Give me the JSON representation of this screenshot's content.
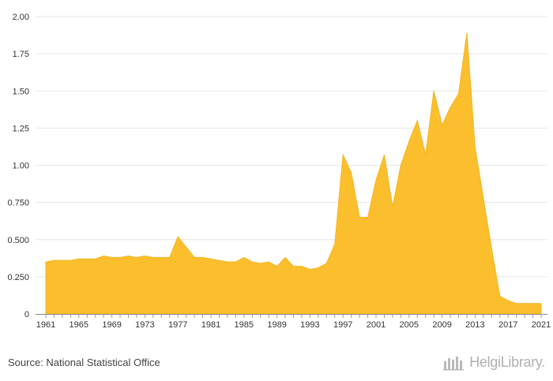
{
  "chart_data": {
    "type": "area",
    "title": "",
    "xlabel": "",
    "ylabel": "",
    "ylim": [
      0,
      2.0
    ],
    "grid": true,
    "legend": "none",
    "fill_color": "#FBBF2E",
    "line_color": "#F5B41E",
    "y_ticks": [
      "0",
      "0.250",
      "0.500",
      "0.750",
      "1.00",
      "1.25",
      "1.50",
      "1.75",
      "2.00"
    ],
    "y_tick_values": [
      0,
      0.25,
      0.5,
      0.75,
      1.0,
      1.25,
      1.5,
      1.75,
      2.0
    ],
    "x_ticks": [
      "1961",
      "1965",
      "1969",
      "1973",
      "1977",
      "1981",
      "1985",
      "1989",
      "1993",
      "1997",
      "2001",
      "2005",
      "2009",
      "2013",
      "2017",
      "2021"
    ],
    "x": [
      1961,
      1962,
      1963,
      1964,
      1965,
      1966,
      1967,
      1968,
      1969,
      1970,
      1971,
      1972,
      1973,
      1974,
      1975,
      1976,
      1977,
      1978,
      1979,
      1980,
      1981,
      1982,
      1983,
      1984,
      1985,
      1986,
      1987,
      1988,
      1989,
      1990,
      1991,
      1992,
      1993,
      1994,
      1995,
      1996,
      1997,
      1998,
      1999,
      2000,
      2001,
      2002,
      2003,
      2004,
      2005,
      2006,
      2007,
      2008,
      2009,
      2010,
      2011,
      2012,
      2013,
      2014,
      2015,
      2016,
      2017,
      2018,
      2019,
      2020,
      2021
    ],
    "values": [
      0.35,
      0.36,
      0.36,
      0.36,
      0.37,
      0.37,
      0.37,
      0.39,
      0.38,
      0.38,
      0.39,
      0.38,
      0.39,
      0.38,
      0.38,
      0.38,
      0.52,
      0.45,
      0.38,
      0.38,
      0.37,
      0.36,
      0.35,
      0.35,
      0.38,
      0.35,
      0.34,
      0.35,
      0.32,
      0.38,
      0.32,
      0.32,
      0.3,
      0.31,
      0.34,
      0.47,
      1.07,
      0.95,
      0.65,
      0.65,
      0.9,
      1.07,
      0.72,
      1.0,
      1.16,
      1.3,
      1.07,
      1.5,
      1.27,
      1.39,
      1.48,
      1.89,
      1.12,
      0.78,
      0.44,
      0.12,
      0.09,
      0.07,
      0.07,
      0.07,
      0.07
    ]
  },
  "footer": {
    "source": "Source: National Statistical Office",
    "brand": "HelgiLibrary."
  },
  "icons": {
    "brand": "helgi-logo-icon"
  }
}
